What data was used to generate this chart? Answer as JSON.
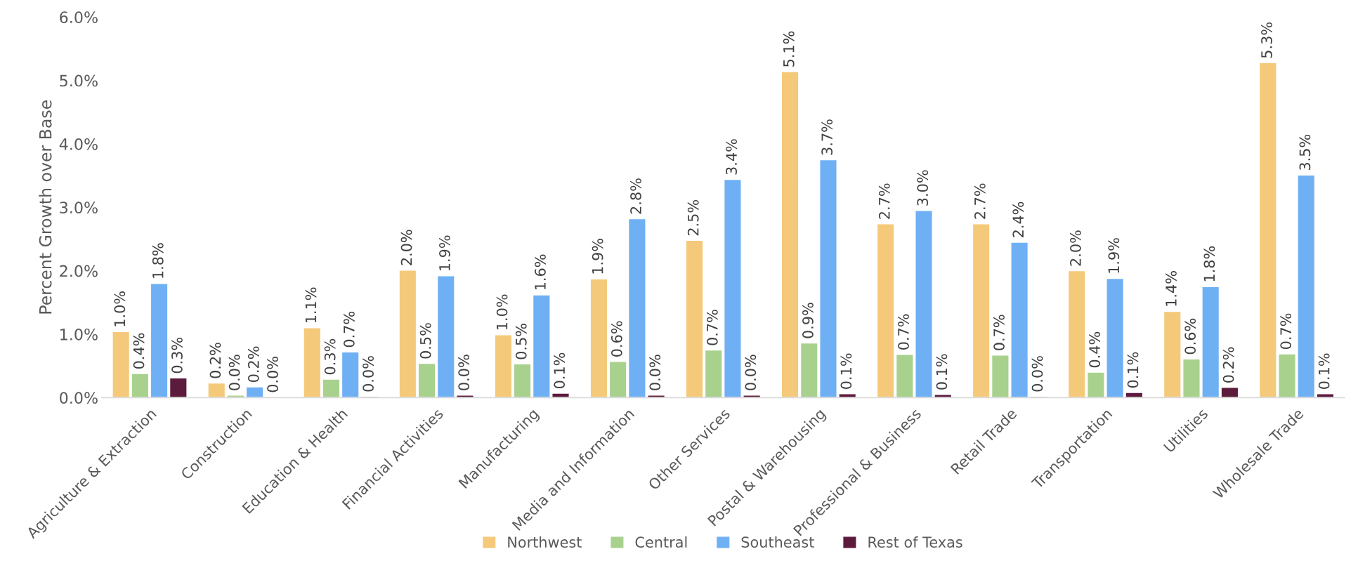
{
  "chart_data": {
    "type": "bar",
    "ylabel": "Percent Growth over Base",
    "categories": [
      "Agriculture & Extraction",
      "Construction",
      "Education & Health",
      "Financial Activities",
      "Manufacturing",
      "Media and Information",
      "Other Services",
      "Postal & Warehousing",
      "Professional & Business",
      "Retail Trade",
      "Transportation",
      "Utilities",
      "Wholesale Trade"
    ],
    "series": [
      {
        "name": "Northwest",
        "color": "#f5c97a",
        "values": [
          1.04,
          0.23,
          1.1,
          2.01,
          0.99,
          1.87,
          2.48,
          5.14,
          2.74,
          2.74,
          2.0,
          1.36,
          5.28
        ],
        "value_labels": [
          "1.0%",
          "0.2%",
          "1.1%",
          "2.0%",
          "1.0%",
          "1.9%",
          "2.5%",
          "5.1%",
          "2.7%",
          "2.7%",
          "2.0%",
          "1.4%",
          "5.3%"
        ]
      },
      {
        "name": "Central",
        "color": "#a9d18e",
        "values": [
          0.38,
          0.04,
          0.29,
          0.54,
          0.53,
          0.57,
          0.75,
          0.86,
          0.68,
          0.67,
          0.4,
          0.61,
          0.69
        ],
        "value_labels": [
          "0.4%",
          "0.0%",
          "0.3%",
          "0.5%",
          "0.5%",
          "0.6%",
          "0.7%",
          "0.9%",
          "0.7%",
          "0.7%",
          "0.4%",
          "0.6%",
          "0.7%"
        ]
      },
      {
        "name": "Southeast",
        "color": "#6fb0f5",
        "values": [
          1.8,
          0.17,
          0.72,
          1.92,
          1.62,
          2.82,
          3.44,
          3.75,
          2.95,
          2.45,
          1.88,
          1.75,
          3.51
        ],
        "value_labels": [
          "1.8%",
          "0.2%",
          "0.7%",
          "1.9%",
          "1.6%",
          "2.8%",
          "3.4%",
          "3.7%",
          "3.0%",
          "2.4%",
          "1.9%",
          "1.8%",
          "3.5%"
        ]
      },
      {
        "name": "Rest of Texas",
        "color": "#5c1a3c",
        "values": [
          0.31,
          0.01,
          0.02,
          0.04,
          0.07,
          0.04,
          0.04,
          0.06,
          0.05,
          0.02,
          0.08,
          0.16,
          0.06
        ],
        "value_labels": [
          "0.3%",
          "0.0%",
          "0.0%",
          "0.0%",
          "0.1%",
          "0.0%",
          "0.0%",
          "0.1%",
          "0.1%",
          "0.0%",
          "0.1%",
          "0.2%",
          "0.1%"
        ]
      }
    ],
    "ylim": [
      0,
      6.0
    ],
    "yticks": [
      {
        "value": 0,
        "label": "0.0%"
      },
      {
        "value": 1,
        "label": "1.0%"
      },
      {
        "value": 2,
        "label": "2.0%"
      },
      {
        "value": 3,
        "label": "3.0%"
      },
      {
        "value": 4,
        "label": "4.0%"
      },
      {
        "value": 5,
        "label": "5.0%"
      },
      {
        "value": 6,
        "label": "6.0%"
      }
    ],
    "legend": "bottom",
    "grid": false
  }
}
